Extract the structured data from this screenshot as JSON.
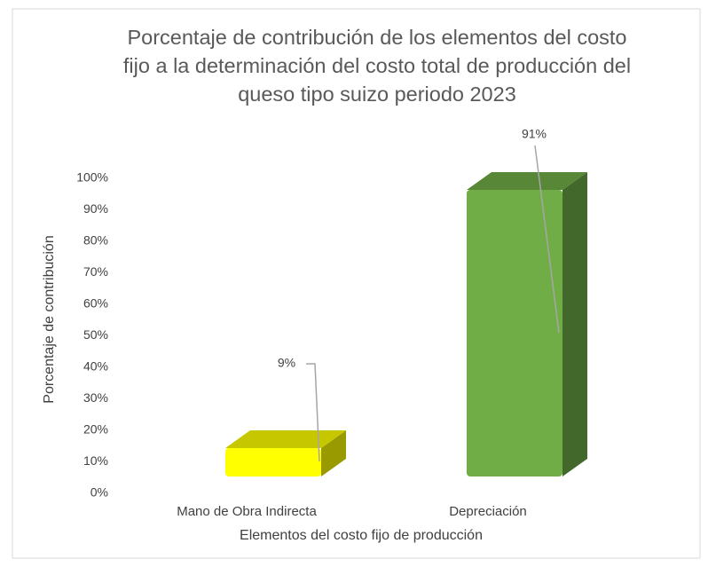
{
  "chart_data": {
    "type": "bar3d",
    "title": "Porcentaje de contribución de los elementos del costo fijo a la determinación del costo total de producción del queso tipo suizo periodo 2023",
    "categories": [
      "Mano de Obra Indirecta",
      "Depreciación"
    ],
    "values": [
      9,
      91
    ],
    "value_labels": [
      "9%",
      "91%"
    ],
    "colors": [
      "#ffff00",
      "#70ad47"
    ],
    "xlabel": "Elementos del costo fijo de producción",
    "ylabel": "Porcentaje de contribución",
    "ylim": [
      0,
      100
    ],
    "yticks": [
      {
        "value": 0,
        "label": "0%"
      },
      {
        "value": 10,
        "label": "10%"
      },
      {
        "value": 20,
        "label": "20%"
      },
      {
        "value": 30,
        "label": "30%"
      },
      {
        "value": 40,
        "label": "40%"
      },
      {
        "value": 50,
        "label": "50%"
      },
      {
        "value": 60,
        "label": "60%"
      },
      {
        "value": 70,
        "label": "70%"
      },
      {
        "value": 80,
        "label": "80%"
      },
      {
        "value": 90,
        "label": "90%"
      },
      {
        "value": 100,
        "label": "100%"
      }
    ],
    "grid": false
  }
}
